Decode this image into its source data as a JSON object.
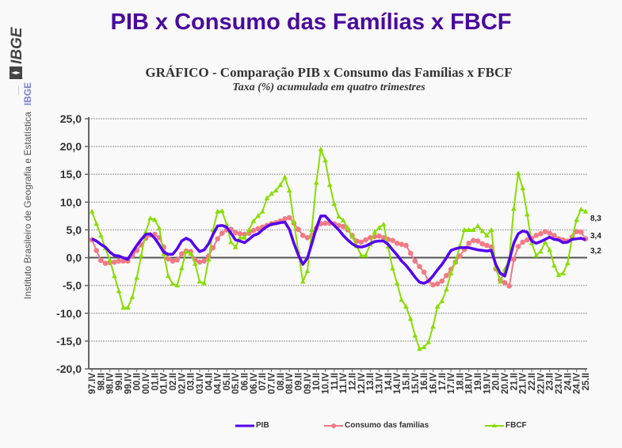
{
  "header": {
    "main_title": "PIB x Consumo das Famílias x FBCF",
    "logo_text": "IBGE",
    "side_text": "Instituto Brasileiro de Geografia e Estatística",
    "side_abbr": "IBGE"
  },
  "chart_data": {
    "type": "line",
    "title": "GRÁFICO - Comparação PIB x Consumo das Famílias x FBCF",
    "subtitle": "Taxa (%) acumulada em quatro trimestres",
    "xlabel": "",
    "ylabel": "",
    "ylim": [
      -20,
      25
    ],
    "yticks": [
      "25,0",
      "20,0",
      "15,0",
      "10,0",
      "5,0",
      "0,0",
      "-5,0",
      "-10,0",
      "-15,0",
      "-20,0"
    ],
    "ytick_values": [
      25,
      20,
      15,
      10,
      5,
      0,
      -5,
      -10,
      -15,
      -20
    ],
    "grid": true,
    "legend_position": "bottom",
    "x_labels": [
      "97.IV",
      "98.II",
      "98.IV",
      "99.II",
      "99.IV",
      "00.II",
      "00.IV",
      "01.II",
      "01.IV",
      "02.II",
      "02.IV",
      "03.II",
      "03.IV",
      "04.II",
      "04.IV",
      "05.II",
      "05.IV",
      "06.II",
      "06.IV",
      "07.II",
      "07.IV",
      "08.II",
      "08.IV",
      "09.II",
      "09.IV",
      "10.II",
      "10.IV",
      "11.II",
      "11.IV",
      "12.II",
      "12.IV",
      "13.II",
      "13.IV",
      "14.II",
      "14.IV",
      "15.II",
      "15.IV",
      "16.II",
      "16.IV",
      "17.II",
      "17.IV",
      "18.II",
      "18.IV",
      "19.II",
      "19.IV",
      "20.II",
      "20.IV",
      "21.II",
      "21.IV",
      "22.II",
      "22.IV",
      "23.II",
      "23.IV",
      "24.II",
      "24.IV",
      "25.II"
    ],
    "x_note": "quarterly points from 97.IV to 25.II; labels every 2 quarters",
    "series": [
      {
        "name": "PIB",
        "color": "#5500ee",
        "marker": "none",
        "end_label": "3,2",
        "values": [
          3.4,
          3.0,
          2.4,
          1.9,
          1.0,
          0.4,
          0.3,
          0.0,
          -0.3,
          1.0,
          2.2,
          3.3,
          4.2,
          4.3,
          3.5,
          2.3,
          1.0,
          0.6,
          0.6,
          1.6,
          3.0,
          3.5,
          3.1,
          2.0,
          1.1,
          1.4,
          2.5,
          4.2,
          5.7,
          5.8,
          5.5,
          4.4,
          3.2,
          3.0,
          2.7,
          3.3,
          4.0,
          4.3,
          5.0,
          5.6,
          6.0,
          6.1,
          6.3,
          6.4,
          5.1,
          2.6,
          0.5,
          -1.2,
          -0.1,
          2.5,
          5.3,
          7.5,
          7.5,
          6.6,
          5.8,
          5.0,
          4.0,
          3.2,
          2.5,
          2.0,
          1.9,
          2.1,
          2.5,
          2.9,
          3.0,
          3.0,
          2.4,
          1.4,
          0.5,
          -0.6,
          -1.4,
          -2.4,
          -3.5,
          -4.4,
          -4.6,
          -4.2,
          -3.3,
          -2.2,
          -1.2,
          0.0,
          1.3,
          1.6,
          1.8,
          1.8,
          1.8,
          1.6,
          1.4,
          1.3,
          1.2,
          1.3,
          -1.2,
          -2.8,
          -3.3,
          -0.5,
          2.6,
          4.3,
          4.8,
          4.6,
          3.0,
          2.6,
          2.9,
          3.3,
          3.7,
          3.3,
          3.2,
          2.7,
          2.8,
          3.3,
          3.4,
          3.5,
          3.2
        ]
      },
      {
        "name": "Consumo das familias",
        "color": "#f07a86",
        "marker": "circle",
        "end_label": "3,4",
        "values": [
          3.2,
          1.3,
          -0.5,
          -1.0,
          -0.9,
          -0.8,
          -0.6,
          -0.6,
          -0.6,
          0.4,
          1.3,
          2.3,
          3.5,
          4.1,
          4.2,
          3.6,
          1.9,
          -0.2,
          -0.6,
          -0.4,
          0.7,
          1.2,
          1.1,
          -0.4,
          -0.8,
          -0.6,
          0.3,
          1.8,
          3.4,
          4.4,
          5.0,
          5.1,
          4.5,
          4.3,
          4.2,
          4.4,
          4.9,
          5.2,
          5.5,
          5.8,
          6.1,
          6.3,
          6.6,
          7.0,
          7.2,
          6.2,
          5.1,
          4.0,
          3.6,
          4.0,
          5.3,
          6.1,
          6.2,
          6.2,
          6.1,
          5.8,
          5.6,
          5.0,
          4.0,
          3.0,
          2.8,
          3.2,
          3.6,
          3.8,
          3.9,
          3.6,
          3.3,
          3.1,
          2.6,
          2.4,
          2.2,
          0.8,
          -0.6,
          -1.6,
          -2.6,
          -4.2,
          -4.9,
          -4.7,
          -4.2,
          -3.2,
          -2.1,
          -0.8,
          0.3,
          1.5,
          2.6,
          3.1,
          3.0,
          2.5,
          2.2,
          1.9,
          -2.0,
          -4.0,
          -4.5,
          -5.1,
          -0.3,
          2.0,
          2.8,
          3.2,
          3.5,
          4.0,
          4.3,
          4.7,
          4.4,
          4.0,
          3.4,
          3.2,
          3.0,
          3.7,
          4.7,
          4.6,
          3.4
        ]
      },
      {
        "name": "FBCF",
        "color": "#88dd00",
        "marker": "triangle",
        "end_label": "8,3",
        "values": [
          8.3,
          6.1,
          4.0,
          1.7,
          -0.4,
          -3.3,
          -6.0,
          -9.0,
          -9.0,
          -7.1,
          -3.6,
          0.4,
          4.6,
          7.1,
          6.8,
          5.3,
          0.7,
          -3.3,
          -4.7,
          -5.0,
          -1.9,
          1.1,
          0.7,
          -1.1,
          -4.3,
          -4.6,
          -0.3,
          5.0,
          8.3,
          8.4,
          6.0,
          2.8,
          1.9,
          3.6,
          3.6,
          5.0,
          6.6,
          7.5,
          8.3,
          10.7,
          11.5,
          12.1,
          13.1,
          14.5,
          12.1,
          6.5,
          1.1,
          -4.3,
          -2.4,
          5.0,
          13.5,
          19.5,
          17.5,
          13.1,
          9.7,
          7.4,
          6.7,
          5.4,
          3.8,
          2.1,
          0.4,
          0.4,
          2.4,
          4.6,
          5.4,
          6.0,
          2.0,
          -1.9,
          -4.6,
          -7.6,
          -8.8,
          -11.0,
          -14.0,
          -16.4,
          -16.1,
          -15.2,
          -12.4,
          -8.8,
          -7.8,
          -5.7,
          -2.8,
          -0.7,
          2.1,
          5.0,
          5.0,
          5.0,
          5.7,
          4.8,
          4.0,
          5.0,
          -1.7,
          -4.3,
          -2.1,
          -0.3,
          8.8,
          15.2,
          12.5,
          7.8,
          2.6,
          0.4,
          1.1,
          2.8,
          1.4,
          -1.4,
          -3.1,
          -2.8,
          -1.0,
          3.6,
          6.8,
          8.7,
          8.3
        ]
      }
    ]
  }
}
